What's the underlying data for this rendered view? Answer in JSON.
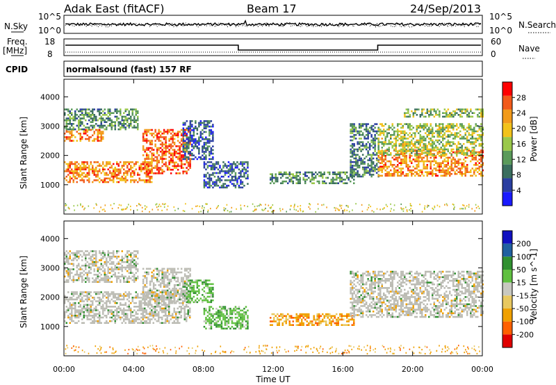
{
  "header": {
    "station": "Adak East (fitACF)",
    "beam": "Beam 17",
    "date": "24/Sep/2013"
  },
  "aux_panels": {
    "nsky_label": "N.Sky",
    "nsearch_label": "N.Search",
    "nsky_ticks": [
      "10^5",
      "10^0"
    ],
    "nsearch_ticks": [
      "10^5",
      "10^0"
    ],
    "freq_label_1": "Freq.",
    "freq_label_2": "[MHz]",
    "freq_ticks": [
      "18",
      "8"
    ],
    "nave_label": "Nave",
    "nave_ticks": [
      "60",
      "0"
    ],
    "cpid_label": "CPID",
    "cpid_value": "normalsound (fast) 157 RF"
  },
  "colors": {
    "power_scale": [
      "#1a1aff",
      "#2a3ea0",
      "#3a6e5e",
      "#5a9a5a",
      "#9ac84a",
      "#f2c21a",
      "#f29a1a",
      "#f25a1a",
      "#ff0000"
    ],
    "velocity_scale": [
      "#e00000",
      "#ff6000",
      "#f0a000",
      "#e8c860",
      "#c8c8c0",
      "#60c040",
      "#309030",
      "#2060a0",
      "#1010c0"
    ],
    "ground_scatter": "#bcbcb4"
  },
  "chart_data": [
    {
      "type": "heatmap",
      "title": "",
      "xlabel": "Time UT",
      "ylabel": "Slant Range [km]",
      "x_ticks": [
        "00:00",
        "04:00",
        "08:00",
        "12:00",
        "16:00",
        "20:00",
        "00:00"
      ],
      "y_ticks": [
        "1000",
        "2000",
        "3000",
        "4000"
      ],
      "ylim": [
        0,
        4600
      ],
      "xlim_hours": [
        0,
        24
      ],
      "colorbar": {
        "label": "Power [dB]",
        "ticks": [
          "4",
          "8",
          "12",
          "16",
          "20",
          "24",
          "28"
        ]
      },
      "regions": [
        {
          "t0": 0.0,
          "t1": 5.0,
          "r0": 1100,
          "r1": 1800,
          "level": 0.75
        },
        {
          "t0": 4.5,
          "t1": 7.2,
          "r0": 1400,
          "r1": 2900,
          "level": 0.8
        },
        {
          "t0": 0.0,
          "t1": 2.2,
          "r0": 2500,
          "r1": 2900,
          "level": 0.75
        },
        {
          "t0": 0.0,
          "t1": 4.2,
          "r0": 2900,
          "r1": 3600,
          "level": 0.35
        },
        {
          "t0": 6.8,
          "t1": 8.5,
          "r0": 1900,
          "r1": 3200,
          "level": 0.22
        },
        {
          "t0": 8.0,
          "t1": 10.5,
          "r0": 900,
          "r1": 1800,
          "level": 0.22
        },
        {
          "t0": 11.8,
          "t1": 16.6,
          "r0": 1050,
          "r1": 1450,
          "level": 0.35
        },
        {
          "t0": 16.4,
          "t1": 18.0,
          "r0": 1300,
          "r1": 3100,
          "level": 0.3
        },
        {
          "t0": 18.0,
          "t1": 24.0,
          "r0": 1300,
          "r1": 2200,
          "level": 0.75
        },
        {
          "t0": 18.0,
          "t1": 24.0,
          "r0": 2000,
          "r1": 3100,
          "level": 0.5
        },
        {
          "t0": 19.5,
          "t1": 24.0,
          "r0": 3300,
          "r1": 3600,
          "level": 0.45
        }
      ]
    },
    {
      "type": "heatmap",
      "title": "",
      "xlabel": "Time UT",
      "ylabel": "Slant Range [km]",
      "x_ticks": [
        "00:00",
        "04:00",
        "08:00",
        "12:00",
        "16:00",
        "20:00",
        "00:00"
      ],
      "y_ticks": [
        "1000",
        "2000",
        "3000",
        "4000"
      ],
      "ylim": [
        0,
        4600
      ],
      "xlim_hours": [
        0,
        24
      ],
      "colorbar": {
        "label": "Velocity [m s^-1]",
        "ticks": [
          "200",
          "100",
          "50",
          "15",
          "-15",
          "-50",
          "-100",
          "-200"
        ]
      },
      "regions": [
        {
          "t0": 0.0,
          "t1": 7.2,
          "r0": 1100,
          "r1": 2200,
          "kind": "gs"
        },
        {
          "t0": 0.0,
          "t1": 4.2,
          "r0": 2500,
          "r1": 3600,
          "kind": "gs"
        },
        {
          "t0": 4.5,
          "t1": 7.2,
          "r0": 1800,
          "r1": 3000,
          "kind": "gs"
        },
        {
          "t0": 7.0,
          "t1": 8.5,
          "r0": 1800,
          "r1": 2600,
          "kind": "pos"
        },
        {
          "t0": 8.0,
          "t1": 10.5,
          "r0": 900,
          "r1": 1700,
          "kind": "pos"
        },
        {
          "t0": 11.8,
          "t1": 16.6,
          "r0": 1050,
          "r1": 1450,
          "kind": "neg"
        },
        {
          "t0": 16.4,
          "t1": 18.0,
          "r0": 1300,
          "r1": 2900,
          "kind": "gs"
        },
        {
          "t0": 18.0,
          "t1": 24.0,
          "r0": 1300,
          "r1": 2900,
          "kind": "gs"
        }
      ]
    }
  ]
}
